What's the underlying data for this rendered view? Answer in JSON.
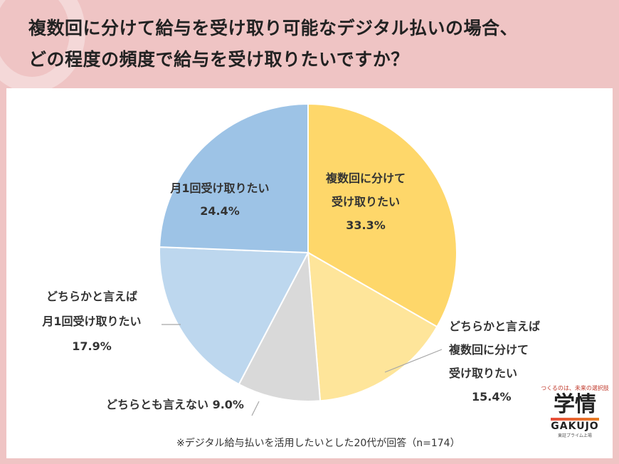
{
  "title_lines": [
    "複数回に分けて給与を受け取り可能なデジタル払いの場合、",
    "どの程度の頻度で給与を受け取りたいですか？"
  ],
  "note": "※デジタル給与払いを活用したいとした20代が回答（n=174）",
  "logo": {
    "tagline": "つくるのは、未来の選択肢",
    "mark": "学情",
    "en": "GAKUJO",
    "sub": "東証プライム上場"
  },
  "chart_data": {
    "type": "pie",
    "slices": [
      {
        "lines": [
          "複数回に分けて",
          "受け取りたい"
        ],
        "value_label": "33.3%",
        "value": 33.3,
        "color": "#fed76a"
      },
      {
        "lines": [
          "どちらかと言えば",
          "複数回に分けて",
          "受け取りたい"
        ],
        "value_label": "15.4%",
        "value": 15.4,
        "color": "#fee59a"
      },
      {
        "lines": [
          "どちらとも言えない"
        ],
        "value_label": "9.0%",
        "value": 9.0,
        "color": "#d9d9d9"
      },
      {
        "lines": [
          "どちらかと言えば",
          "月1回受け取りたい"
        ],
        "value_label": "17.9%",
        "value": 17.9,
        "color": "#bdd7ee"
      },
      {
        "lines": [
          "月1回受け取りたい"
        ],
        "value_label": "24.4%",
        "value": 24.4,
        "color": "#9dc3e6"
      }
    ]
  }
}
